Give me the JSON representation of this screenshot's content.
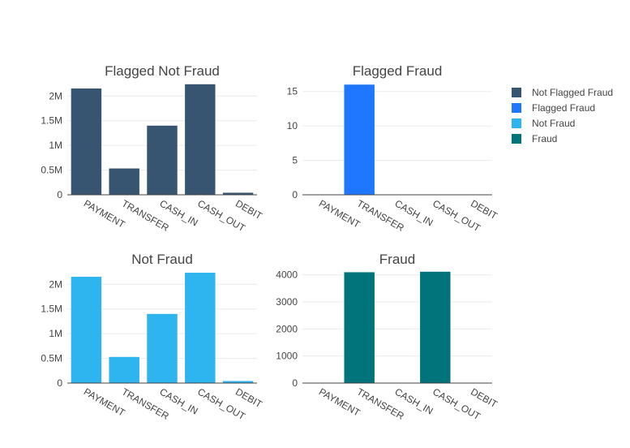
{
  "chart_data": [
    {
      "type": "bar",
      "title": "Flagged Not Fraud",
      "categories": [
        "PAYMENT",
        "TRANSFER",
        "CASH_IN",
        "CASH_OUT",
        "DEBIT"
      ],
      "series": [
        {
          "name": "Not Flagged Fraud",
          "values": [
            2151495,
            532893,
            1399284,
            2237500,
            41432
          ],
          "color": "#375571"
        }
      ],
      "ylim": [
        0,
        2300000
      ],
      "yticks": [
        0,
        500000,
        1000000,
        1500000,
        2000000
      ],
      "yticklabels": [
        "0",
        "0.5M",
        "1M",
        "1.5M",
        "2M"
      ],
      "grid": true
    },
    {
      "type": "bar",
      "title": "Flagged Fraud",
      "categories": [
        "PAYMENT",
        "TRANSFER",
        "CASH_IN",
        "CASH_OUT",
        "DEBIT"
      ],
      "series": [
        {
          "name": "Flagged Fraud",
          "values": [
            0,
            16,
            0,
            0,
            0
          ],
          "color": "#1f77ff"
        }
      ],
      "ylim": [
        0,
        16.5
      ],
      "yticks": [
        0,
        5,
        10,
        15
      ],
      "yticklabels": [
        "0",
        "5",
        "10",
        "15"
      ],
      "grid": true
    },
    {
      "type": "bar",
      "title": "Not Fraud",
      "categories": [
        "PAYMENT",
        "TRANSFER",
        "CASH_IN",
        "CASH_OUT",
        "DEBIT"
      ],
      "series": [
        {
          "name": "Not Fraud",
          "values": [
            2151495,
            528812,
            1399284,
            2233384,
            41432
          ],
          "color": "#2eb4ee"
        }
      ],
      "ylim": [
        0,
        2300000
      ],
      "yticks": [
        0,
        500000,
        1000000,
        1500000,
        2000000
      ],
      "yticklabels": [
        "0",
        "0.5M",
        "1M",
        "1.5M",
        "2M"
      ],
      "grid": true
    },
    {
      "type": "bar",
      "title": "Fraud",
      "categories": [
        "PAYMENT",
        "TRANSFER",
        "CASH_IN",
        "CASH_OUT",
        "DEBIT"
      ],
      "series": [
        {
          "name": "Fraud",
          "values": [
            0,
            4097,
            0,
            4116,
            0
          ],
          "color": "#00737b"
        }
      ],
      "ylim": [
        0,
        4200
      ],
      "yticks": [
        0,
        1000,
        2000,
        3000,
        4000
      ],
      "yticklabels": [
        "0",
        "1000",
        "2000",
        "3000",
        "4000"
      ],
      "grid": true
    }
  ],
  "legend": {
    "placement": "top-right",
    "items": [
      {
        "label": "Not Flagged Fraud",
        "color": "#375571"
      },
      {
        "label": "Flagged Fraud",
        "color": "#1f77ff"
      },
      {
        "label": "Not Fraud",
        "color": "#2eb4ee"
      },
      {
        "label": "Fraud",
        "color": "#00737b"
      }
    ]
  }
}
